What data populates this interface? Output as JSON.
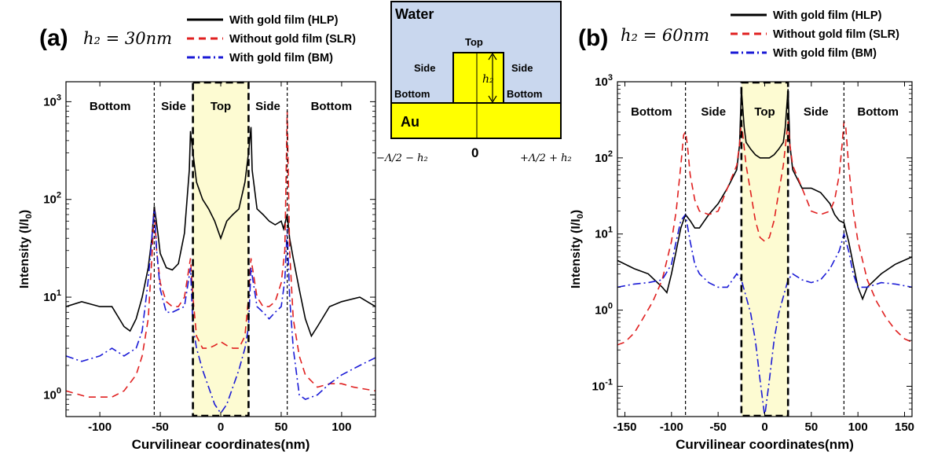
{
  "colors": {
    "hlp": "#000000",
    "slr": "#e02020",
    "bm": "#1a1ad6",
    "top_fill": "#fdfbd2",
    "water": "#c9d7ee",
    "gold": "#ffff00"
  },
  "panel_a": {
    "label": "(a)",
    "h2_text": "h₂ = 30nm",
    "regions": [
      "Bottom",
      "Side",
      "Top",
      "Side",
      "Bottom"
    ]
  },
  "panel_b": {
    "label": "(b)",
    "h2_text": "h₂ = 60nm",
    "regions": [
      "Bottom",
      "Side",
      "Top",
      "Side",
      "Bottom"
    ]
  },
  "inset": {
    "water": "Water",
    "au": "Au",
    "top": "Top",
    "side_left": "Side",
    "side_right": "Side",
    "bottom_left": "Bottom",
    "bottom_right": "Bottom",
    "h2": "h₂",
    "x_left": "−Λ/2 − h₂",
    "x_zero": "0",
    "x_right": "+Λ/2 + h₂"
  },
  "chart_data": [
    {
      "type": "line",
      "ylog": true,
      "xlabel": "Curvilinear coordinates(nm)",
      "ylabel": "Intensity (I/I0)",
      "xlim": [
        -128,
        128
      ],
      "ylim": [
        0.6,
        1600
      ],
      "xticks": [
        "-100",
        "-50",
        "0",
        "50",
        "100"
      ],
      "yticks": [
        "10^0",
        "10^1",
        "10^2",
        "10^3"
      ],
      "region_bounds": [
        -55,
        -23,
        23,
        55
      ],
      "legend": [
        "With gold film (HLP)",
        "Without gold film (SLR)",
        "With gold film (BM)"
      ],
      "series": [
        {
          "name": "With gold film (HLP)",
          "style": "solid",
          "x": [
            -128,
            -115,
            -100,
            -90,
            -80,
            -75,
            -70,
            -65,
            -60,
            -57,
            -55,
            -52,
            -50,
            -45,
            -40,
            -35,
            -30,
            -26,
            -25,
            -23,
            -20,
            -15,
            -10,
            -5,
            0,
            5,
            10,
            15,
            20,
            23,
            25,
            26,
            30,
            35,
            40,
            45,
            50,
            52,
            55,
            57,
            60,
            65,
            70,
            75,
            80,
            90,
            100,
            115,
            128
          ],
          "values": [
            8,
            9,
            8,
            8,
            5,
            4.5,
            6,
            10,
            20,
            40,
            85,
            45,
            28,
            20,
            19,
            22,
            45,
            200,
            500,
            300,
            150,
            100,
            80,
            60,
            40,
            60,
            70,
            80,
            150,
            300,
            550,
            200,
            80,
            70,
            60,
            55,
            60,
            50,
            70,
            40,
            25,
            12,
            6,
            4,
            5,
            8,
            9,
            10,
            8
          ]
        },
        {
          "name": "Without gold film (SLR)",
          "style": "dashed",
          "x": [
            -128,
            -110,
            -90,
            -80,
            -70,
            -65,
            -60,
            -57,
            -55,
            -53,
            -50,
            -45,
            -40,
            -35,
            -30,
            -25,
            -23,
            -20,
            -15,
            -10,
            -5,
            0,
            5,
            10,
            15,
            20,
            23,
            25,
            30,
            35,
            40,
            45,
            50,
            53,
            55,
            57,
            60,
            65,
            70,
            80,
            90,
            100,
            110,
            128
          ],
          "values": [
            1.1,
            0.95,
            0.95,
            1.1,
            1.6,
            2.5,
            6,
            25,
            80,
            30,
            14,
            9,
            8,
            8,
            10,
            25,
            10,
            4,
            3,
            3,
            3.2,
            3.5,
            3.2,
            3,
            3,
            4,
            10,
            25,
            10,
            8,
            8,
            9,
            14,
            30,
            800,
            30,
            6,
            2.5,
            1.6,
            1.2,
            1.3,
            1.3,
            1.2,
            1.1
          ]
        },
        {
          "name": "With gold film (BM)",
          "style": "dashdot",
          "x": [
            -128,
            -115,
            -100,
            -90,
            -80,
            -70,
            -65,
            -60,
            -57,
            -55,
            -53,
            -50,
            -45,
            -40,
            -35,
            -30,
            -25,
            -23,
            -20,
            -15,
            -10,
            -5,
            0,
            5,
            10,
            15,
            20,
            23,
            25,
            30,
            35,
            40,
            45,
            50,
            53,
            55,
            57,
            60,
            65,
            70,
            80,
            90,
            100,
            115,
            128
          ],
          "values": [
            2.5,
            2.2,
            2.5,
            3,
            2.5,
            3,
            4.5,
            15,
            40,
            80,
            30,
            12,
            7,
            7,
            7.5,
            8,
            20,
            5,
            3,
            1.8,
            1.2,
            0.8,
            0.65,
            0.8,
            1.2,
            1.8,
            3,
            5,
            20,
            8,
            7,
            6,
            7,
            8,
            15,
            50,
            10,
            3,
            1,
            0.9,
            1,
            1.3,
            1.6,
            2,
            2.4
          ]
        }
      ]
    },
    {
      "type": "line",
      "ylog": true,
      "xlabel": "Curvilinear coordinates(nm)",
      "ylabel": "Intensity (I/I0)",
      "xlim": [
        -158,
        158
      ],
      "ylim": [
        0.04,
        1000
      ],
      "xticks": [
        "-150",
        "-100",
        "-50",
        "0",
        "50",
        "100",
        "150"
      ],
      "yticks": [
        "10^-1",
        "10^0",
        "10^1",
        "10^2",
        "10^3"
      ],
      "region_bounds": [
        -85,
        -25,
        25,
        85
      ],
      "legend": [
        "With gold film (HLP)",
        "Without gold film (SLR)",
        "With gold film (BM)"
      ],
      "series": [
        {
          "name": "With gold film (HLP)",
          "style": "solid",
          "x": [
            -158,
            -140,
            -125,
            -110,
            -105,
            -100,
            -95,
            -90,
            -85,
            -80,
            -75,
            -70,
            -60,
            -50,
            -40,
            -30,
            -27,
            -25,
            -22,
            -20,
            -15,
            -10,
            -5,
            0,
            5,
            10,
            15,
            20,
            22,
            25,
            27,
            30,
            40,
            50,
            60,
            70,
            75,
            80,
            85,
            90,
            95,
            100,
            105,
            110,
            125,
            140,
            158
          ],
          "values": [
            4.5,
            3.5,
            3,
            2,
            1.7,
            3,
            6,
            12,
            18,
            15,
            12,
            12,
            18,
            25,
            40,
            70,
            150,
            800,
            250,
            160,
            130,
            110,
            100,
            100,
            100,
            110,
            130,
            160,
            250,
            800,
            150,
            70,
            40,
            40,
            35,
            25,
            18,
            15,
            14,
            8,
            4,
            2,
            1.4,
            2,
            3,
            4,
            5
          ]
        },
        {
          "name": "Without gold film (SLR)",
          "style": "dashed",
          "x": [
            -158,
            -150,
            -140,
            -130,
            -120,
            -110,
            -100,
            -95,
            -90,
            -87,
            -85,
            -83,
            -80,
            -75,
            -70,
            -60,
            -50,
            -40,
            -30,
            -27,
            -25,
            -20,
            -15,
            -10,
            -5,
            0,
            5,
            10,
            15,
            20,
            25,
            27,
            30,
            40,
            50,
            60,
            70,
            75,
            80,
            83,
            85,
            87,
            90,
            95,
            100,
            110,
            120,
            130,
            140,
            150,
            158
          ],
          "values": [
            0.35,
            0.38,
            0.5,
            0.8,
            1.3,
            2.5,
            8,
            20,
            80,
            200,
            220,
            150,
            60,
            28,
            20,
            18,
            20,
            40,
            80,
            150,
            300,
            80,
            35,
            15,
            9,
            8,
            9,
            15,
            35,
            80,
            300,
            150,
            80,
            40,
            20,
            18,
            20,
            28,
            60,
            150,
            300,
            250,
            80,
            20,
            8,
            2.5,
            1.3,
            0.8,
            0.55,
            0.42,
            0.38
          ]
        },
        {
          "name": "With gold film (BM)",
          "style": "dashdot",
          "x": [
            -158,
            -140,
            -125,
            -110,
            -100,
            -95,
            -90,
            -85,
            -80,
            -75,
            -70,
            -60,
            -50,
            -40,
            -30,
            -25,
            -20,
            -15,
            -10,
            -5,
            0,
            5,
            10,
            15,
            20,
            25,
            30,
            40,
            50,
            60,
            70,
            80,
            85,
            90,
            95,
            100,
            110,
            125,
            140,
            158
          ],
          "values": [
            2,
            2.2,
            2.3,
            2.5,
            4,
            8,
            15,
            18,
            8,
            4,
            3,
            2.3,
            2,
            2,
            3,
            2.5,
            1.5,
            0.9,
            0.4,
            0.12,
            0.04,
            0.12,
            0.4,
            0.9,
            1.5,
            2.5,
            3,
            2.5,
            2.3,
            2.5,
            3.5,
            6,
            10,
            6,
            3,
            2,
            2,
            2.3,
            2.2,
            2
          ]
        }
      ]
    }
  ]
}
